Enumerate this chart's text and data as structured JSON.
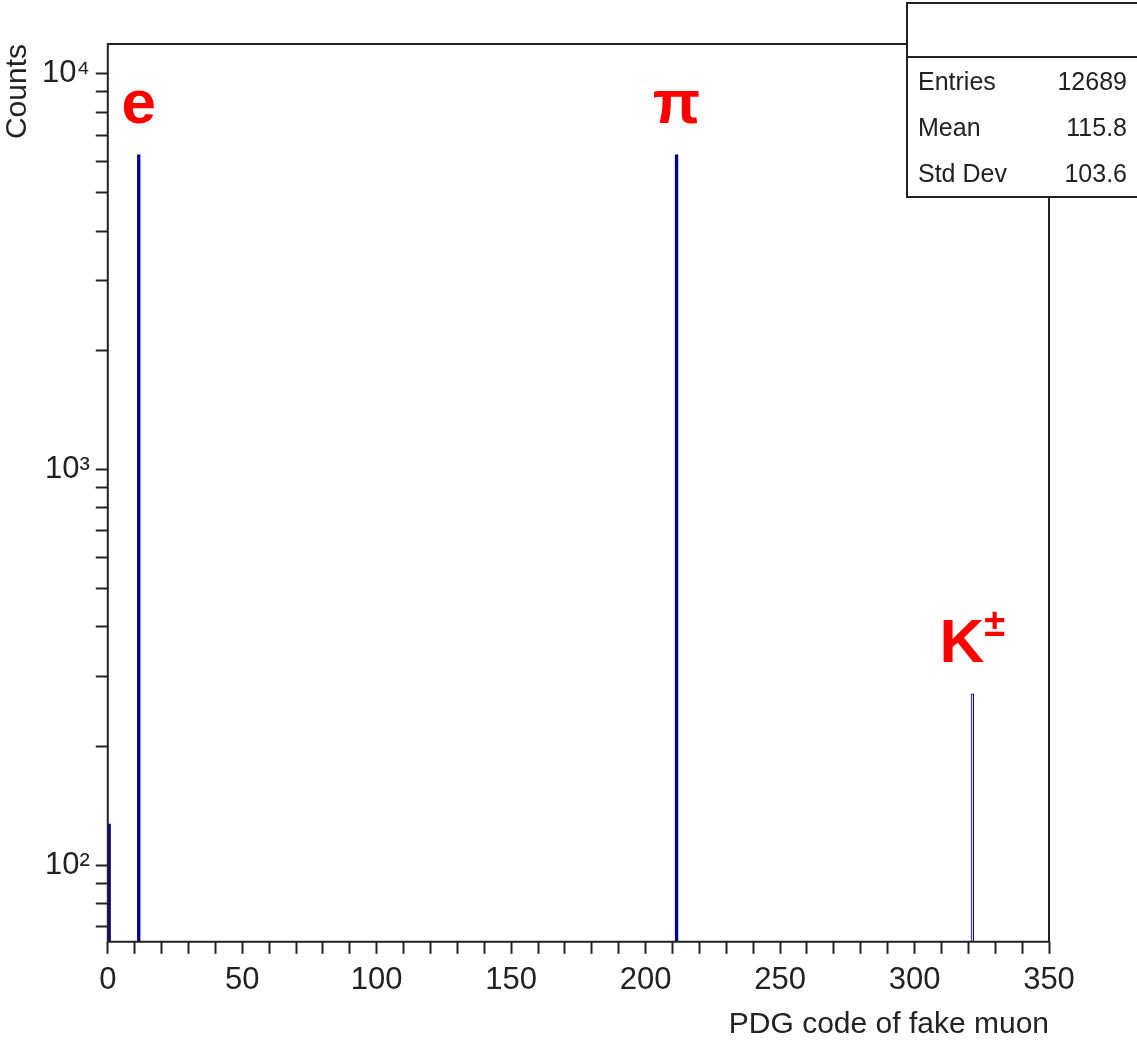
{
  "chart_data": {
    "type": "histogram",
    "xlabel": "PDG code of fake muon",
    "ylabel": "Counts",
    "bins": [
      0,
      1,
      11,
      12,
      211,
      212,
      321,
      322
    ],
    "values": [
      127,
      null,
      6240,
      null,
      6240,
      null,
      271
    ],
    "color": "#000099",
    "colors": [
      "#000099",
      "#000099",
      "#000099",
      "#000099",
      "#000099",
      "#000099",
      "#dcdcff"
    ],
    "xlim": [
      0,
      350
    ],
    "xticks": [
      0,
      {
        "value": 10,
        "label": null
      },
      {
        "value": 20,
        "label": null
      },
      {
        "value": 30,
        "label": null
      },
      {
        "value": 40,
        "label": null
      },
      50,
      {
        "value": 60,
        "label": null
      },
      {
        "value": 70,
        "label": null
      },
      {
        "value": 80,
        "label": null
      },
      {
        "value": 90,
        "label": null
      },
      100,
      {
        "value": 110,
        "label": null
      },
      {
        "value": 120,
        "label": null
      },
      {
        "value": 130,
        "label": null
      },
      {
        "value": 140,
        "label": null
      },
      150,
      {
        "value": 160,
        "label": null
      },
      {
        "value": 170,
        "label": null
      },
      {
        "value": 180,
        "label": null
      },
      {
        "value": 190,
        "label": null
      },
      200,
      {
        "value": 210,
        "label": null
      },
      {
        "value": 220,
        "label": null
      },
      {
        "value": 230,
        "label": null
      },
      {
        "value": 240,
        "label": null
      },
      250,
      {
        "value": 260,
        "label": null
      },
      {
        "value": 270,
        "label": null
      },
      {
        "value": 280,
        "label": null
      },
      {
        "value": 290,
        "label": null
      },
      300,
      {
        "value": 310,
        "label": null
      },
      {
        "value": 320,
        "label": null
      },
      {
        "value": 330,
        "label": null
      },
      {
        "value": 340,
        "label": null
      },
      350
    ],
    "ylim": [
      64,
      11900
    ],
    "yticks": [
      {
        "value": 70,
        "label": null
      },
      {
        "value": 80,
        "label": null
      },
      {
        "value": 90,
        "label": null
      },
      {
        "value": 100,
        "label": "10²"
      },
      {
        "value": 200,
        "label": null
      },
      {
        "value": 300,
        "label": null
      },
      {
        "value": 400,
        "label": null
      },
      {
        "value": 500,
        "label": null
      },
      {
        "value": 600,
        "label": null
      },
      {
        "value": 700,
        "label": null
      },
      {
        "value": 800,
        "label": null
      },
      {
        "value": 900,
        "label": null
      },
      {
        "value": 1000,
        "label": "10³"
      },
      {
        "value": 2000,
        "label": null
      },
      {
        "value": 3000,
        "label": null
      },
      {
        "value": 4000,
        "label": null
      },
      {
        "value": 5000,
        "label": null
      },
      {
        "value": 6000,
        "label": null
      },
      {
        "value": 7000,
        "label": null
      },
      {
        "value": 8000,
        "label": null
      },
      {
        "value": 9000,
        "label": null
      },
      {
        "value": 10000,
        "label": "10⁴"
      }
    ],
    "log": "y",
    "grid": false,
    "legend": false,
    "annotations": [
      {
        "text": "e",
        "x": 11.5,
        "y": 6240
      },
      {
        "text": "π",
        "x": 211.5,
        "y": 6240
      },
      {
        "text": "K$^{±}$",
        "x": 321.5,
        "y": 271
      },
      "Entries",
      "12689",
      "Mean",
      "115.8",
      "Std Dev",
      "103.6"
    ]
  }
}
